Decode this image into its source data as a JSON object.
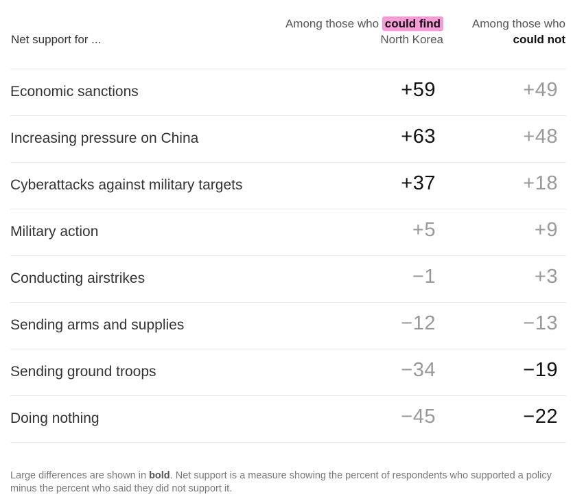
{
  "header": {
    "net_support_label": "Net support for ...",
    "found_col": {
      "line1_prefix": "Among those who",
      "line1_highlight": "could find",
      "line2": "North Korea"
    },
    "notfound_col": {
      "line1": "Among those who",
      "line2_bold": "could not"
    }
  },
  "colors": {
    "highlight": "#f59bd6",
    "strong_value": "#111111",
    "light_value": "#999999"
  },
  "chart_data": {
    "type": "table",
    "columns": [
      "Among those who could find North Korea",
      "Among those who could not"
    ],
    "rows": [
      {
        "label": "Economic sanctions",
        "found": "+59",
        "notfound": "+49",
        "found_bold": true,
        "notfound_bold": false
      },
      {
        "label": "Increasing pressure on China",
        "found": "+63",
        "notfound": "+48",
        "found_bold": true,
        "notfound_bold": false
      },
      {
        "label": "Cyberattacks against military targets",
        "found": "+37",
        "notfound": "+18",
        "found_bold": true,
        "notfound_bold": false
      },
      {
        "label": "Military action",
        "found": "+5",
        "notfound": "+9",
        "found_bold": false,
        "notfound_bold": false
      },
      {
        "label": "Conducting airstrikes",
        "found": "−1",
        "notfound": "+3",
        "found_bold": false,
        "notfound_bold": false
      },
      {
        "label": "Sending arms and supplies",
        "found": "−12",
        "notfound": "−13",
        "found_bold": false,
        "notfound_bold": false
      },
      {
        "label": "Sending ground troops",
        "found": "−34",
        "notfound": "−19",
        "found_bold": false,
        "notfound_bold": true
      },
      {
        "label": "Doing nothing",
        "found": "−45",
        "notfound": "−22",
        "found_bold": false,
        "notfound_bold": true
      }
    ]
  },
  "footnote": {
    "prefix": "Large differences are shown in ",
    "bold_word": "bold",
    "suffix": ". Net support is a measure showing the percent of respondents who supported a policy minus the percent who said they did not support it."
  }
}
